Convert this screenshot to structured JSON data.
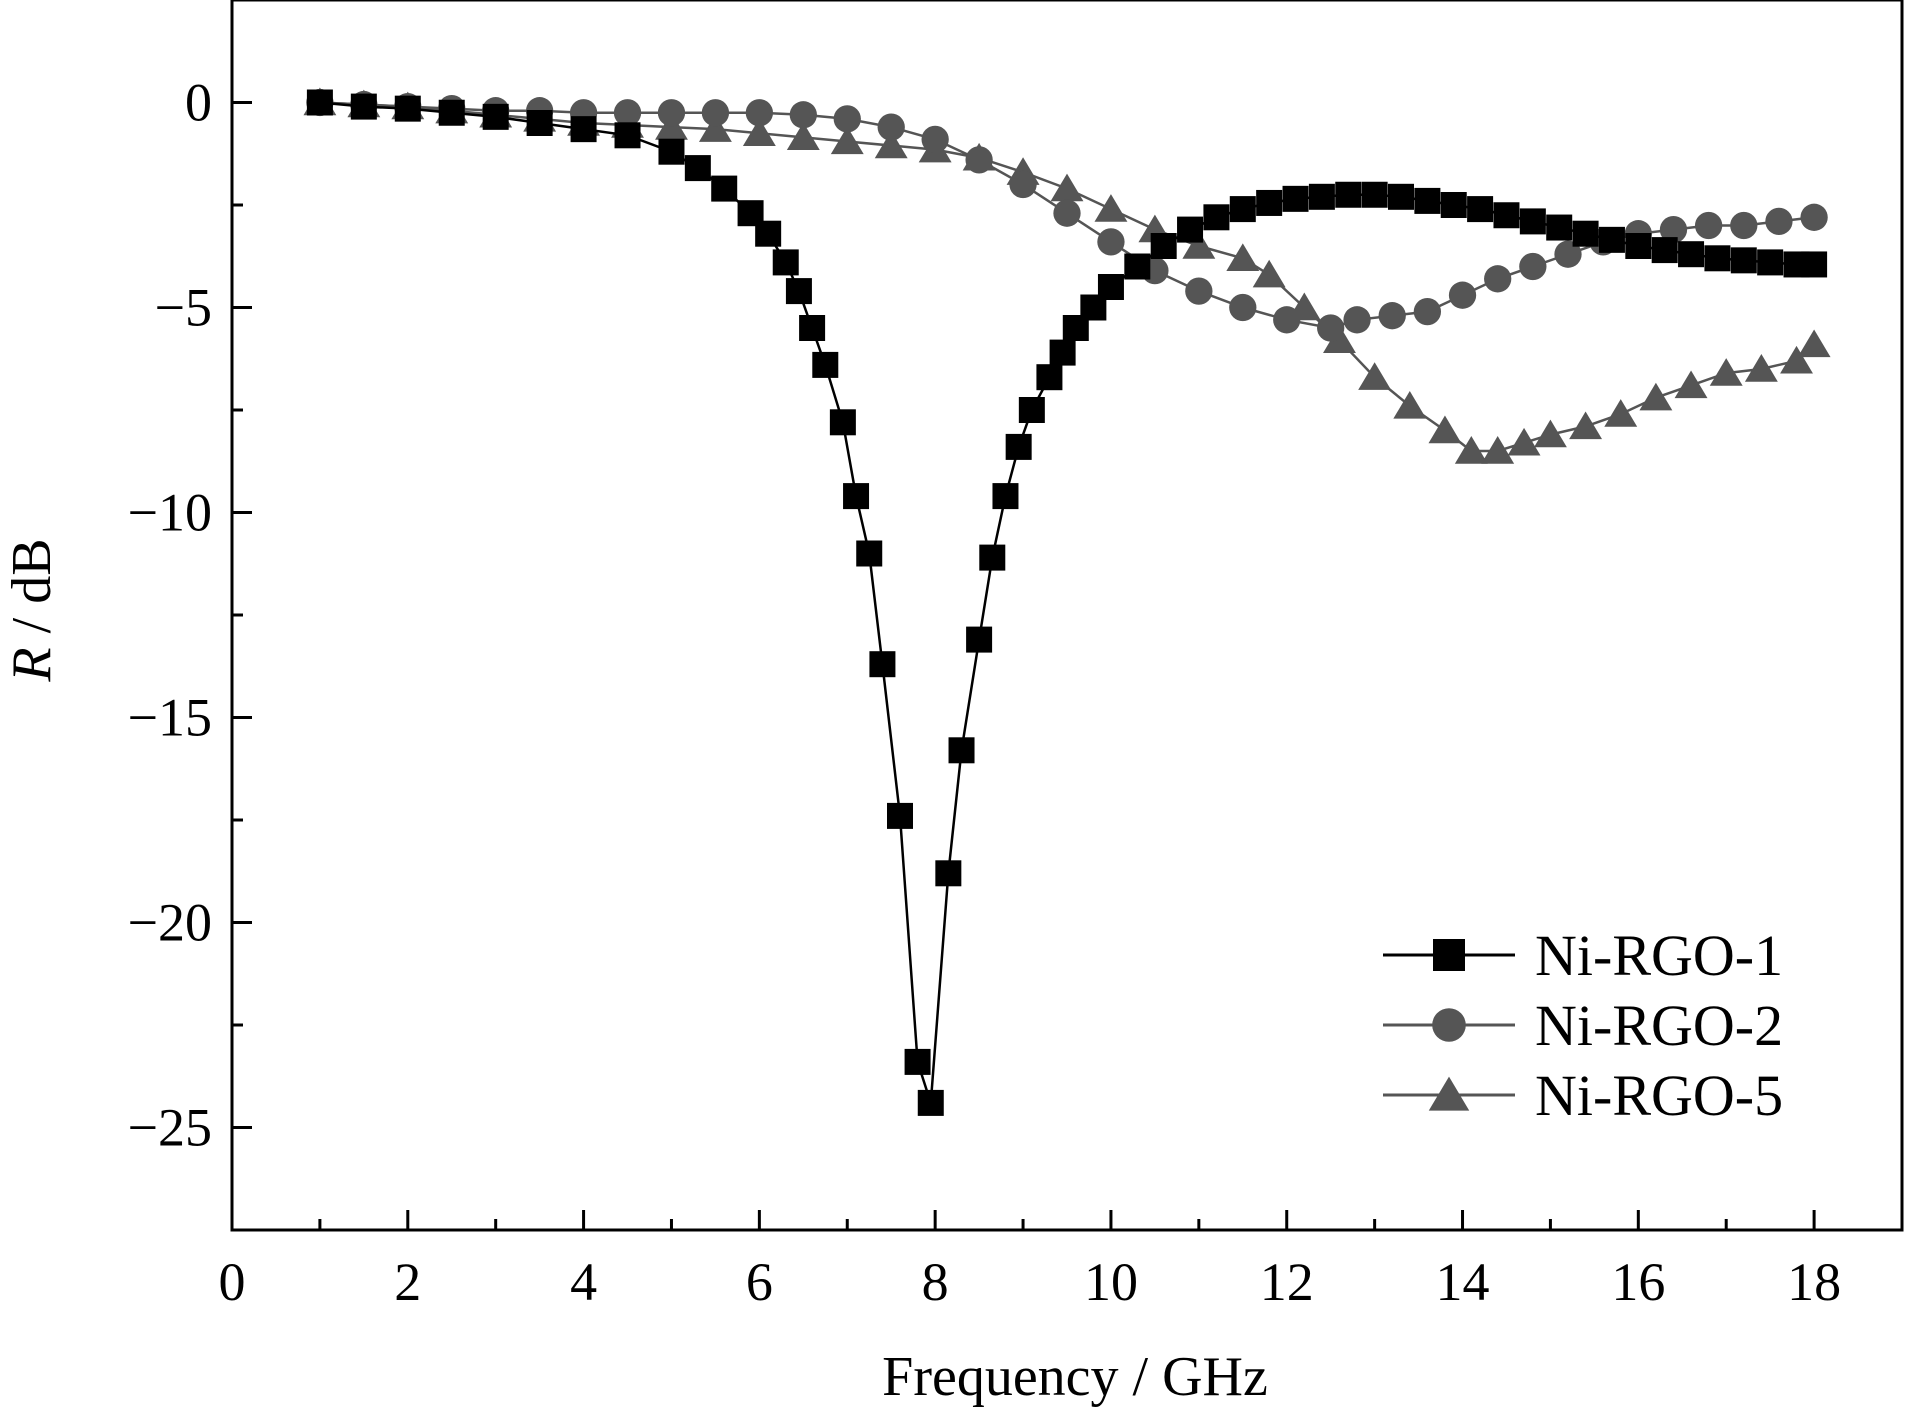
{
  "chart_data": {
    "type": "line",
    "title": "",
    "xlabel": "Frequency / GHz",
    "ylabel": {
      "symbol": "R",
      "unit": " / dB"
    },
    "xlim": [
      0,
      19
    ],
    "ylim": [
      -27.5,
      2.5
    ],
    "xticks": [
      0,
      2,
      4,
      6,
      8,
      10,
      12,
      14,
      16,
      18
    ],
    "yticks": [
      0,
      -5,
      -10,
      -15,
      -20,
      -25
    ],
    "ytick_labels": [
      "0",
      "−5",
      "−10",
      "−15",
      "−20",
      "−25"
    ],
    "grid": false,
    "legend_position": "bottom-right",
    "series": [
      {
        "name": "Ni-RGO-1",
        "marker": "square",
        "color": "#000000",
        "x": [
          1,
          1.5,
          2,
          2.5,
          3,
          3.5,
          4,
          4.5,
          5,
          5.3,
          5.6,
          5.9,
          6.1,
          6.3,
          6.45,
          6.6,
          6.75,
          6.95,
          7.1,
          7.25,
          7.4,
          7.6,
          7.8,
          7.95,
          8.15,
          8.3,
          8.5,
          8.65,
          8.8,
          8.95,
          9.1,
          9.3,
          9.45,
          9.6,
          9.8,
          10,
          10.3,
          10.6,
          10.9,
          11.2,
          11.5,
          11.8,
          12.1,
          12.4,
          12.7,
          13,
          13.3,
          13.6,
          13.9,
          14.2,
          14.5,
          14.8,
          15.1,
          15.4,
          15.7,
          16,
          16.3,
          16.6,
          16.9,
          17.2,
          17.5,
          17.8,
          18
        ],
        "y": [
          0,
          -0.1,
          -0.15,
          -0.25,
          -0.35,
          -0.5,
          -0.65,
          -0.8,
          -1.2,
          -1.6,
          -2.1,
          -2.7,
          -3.2,
          -3.9,
          -4.6,
          -5.5,
          -6.4,
          -7.8,
          -9.6,
          -11,
          -13.7,
          -17.4,
          -23.4,
          -24.4,
          -18.8,
          -15.8,
          -13.1,
          -11.1,
          -9.6,
          -8.4,
          -7.5,
          -6.7,
          -6.1,
          -5.5,
          -5,
          -4.5,
          -4,
          -3.5,
          -3.1,
          -2.8,
          -2.6,
          -2.45,
          -2.35,
          -2.3,
          -2.25,
          -2.25,
          -2.3,
          -2.4,
          -2.5,
          -2.6,
          -2.75,
          -2.9,
          -3.05,
          -3.2,
          -3.35,
          -3.5,
          -3.6,
          -3.7,
          -3.8,
          -3.85,
          -3.9,
          -3.95,
          -3.95
        ]
      },
      {
        "name": "Ni-RGO-2",
        "marker": "circle",
        "color": "#555555",
        "x": [
          1,
          1.5,
          2,
          2.5,
          3,
          3.5,
          4,
          4.5,
          5,
          5.5,
          6,
          6.5,
          7,
          7.5,
          8,
          8.5,
          9,
          9.5,
          10,
          10.5,
          11,
          11.5,
          12,
          12.5,
          12.8,
          13.2,
          13.6,
          14,
          14.4,
          14.8,
          15.2,
          15.6,
          16,
          16.4,
          16.8,
          17.2,
          17.6,
          18
        ],
        "y": [
          0,
          -0.05,
          -0.1,
          -0.15,
          -0.2,
          -0.2,
          -0.25,
          -0.25,
          -0.25,
          -0.25,
          -0.25,
          -0.3,
          -0.4,
          -0.6,
          -0.9,
          -1.4,
          -2,
          -2.7,
          -3.4,
          -4.1,
          -4.6,
          -5,
          -5.3,
          -5.5,
          -5.3,
          -5.2,
          -5.1,
          -4.7,
          -4.3,
          -4,
          -3.7,
          -3.4,
          -3.2,
          -3.1,
          -3,
          -3,
          -2.9,
          -2.8
        ]
      },
      {
        "name": "Ni-RGO-5",
        "marker": "triangle",
        "color": "#555555",
        "x": [
          1,
          1.5,
          2,
          2.5,
          3,
          3.5,
          4,
          4.5,
          5,
          5.5,
          6,
          6.5,
          7,
          7.5,
          8,
          8.5,
          9,
          9.5,
          10,
          10.5,
          11,
          11.5,
          11.8,
          12.2,
          12.6,
          13,
          13.4,
          13.8,
          14.1,
          14.4,
          14.7,
          15,
          15.4,
          15.8,
          16.2,
          16.6,
          17,
          17.4,
          17.8,
          18
        ],
        "y": [
          0,
          -0.05,
          -0.1,
          -0.2,
          -0.3,
          -0.4,
          -0.5,
          -0.55,
          -0.6,
          -0.65,
          -0.75,
          -0.85,
          -0.95,
          -1.05,
          -1.15,
          -1.35,
          -1.7,
          -2.1,
          -2.6,
          -3.1,
          -3.5,
          -3.8,
          -4.2,
          -5,
          -5.8,
          -6.7,
          -7.4,
          -8,
          -8.5,
          -8.5,
          -8.3,
          -8.1,
          -7.9,
          -7.6,
          -7.2,
          -6.9,
          -6.6,
          -6.5,
          -6.3,
          -5.9
        ]
      }
    ]
  }
}
